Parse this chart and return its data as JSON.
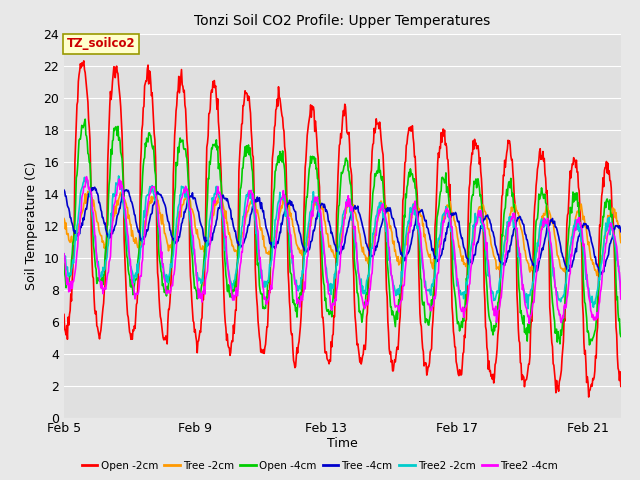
{
  "title": "Tonzi Soil CO2 Profile: Upper Temperatures",
  "ylabel": "Soil Temperature (C)",
  "xlabel": "Time",
  "annotation": "TZ_soilco2",
  "ylim": [
    0,
    24
  ],
  "xlim": [
    0,
    17
  ],
  "xtick_positions": [
    0,
    4,
    8,
    12,
    16
  ],
  "xtick_labels": [
    "Feb 5",
    "Feb 9",
    "Feb 13",
    "Feb 17",
    "Feb 21"
  ],
  "ytick_positions": [
    0,
    2,
    4,
    6,
    8,
    10,
    12,
    14,
    16,
    18,
    20,
    22,
    24
  ],
  "background_color": "#e8e8e8",
  "plot_bg_color": "#e0e0e0",
  "legend_entries": [
    "Open -2cm",
    "Tree -2cm",
    "Open -4cm",
    "Tree -4cm",
    "Tree2 -2cm",
    "Tree2 -4cm"
  ],
  "line_colors": [
    "#ff0000",
    "#ff9900",
    "#00cc00",
    "#0000cc",
    "#00cccc",
    "#ff00ff"
  ],
  "line_widths": [
    1.2,
    1.2,
    1.2,
    1.2,
    1.2,
    1.2
  ]
}
